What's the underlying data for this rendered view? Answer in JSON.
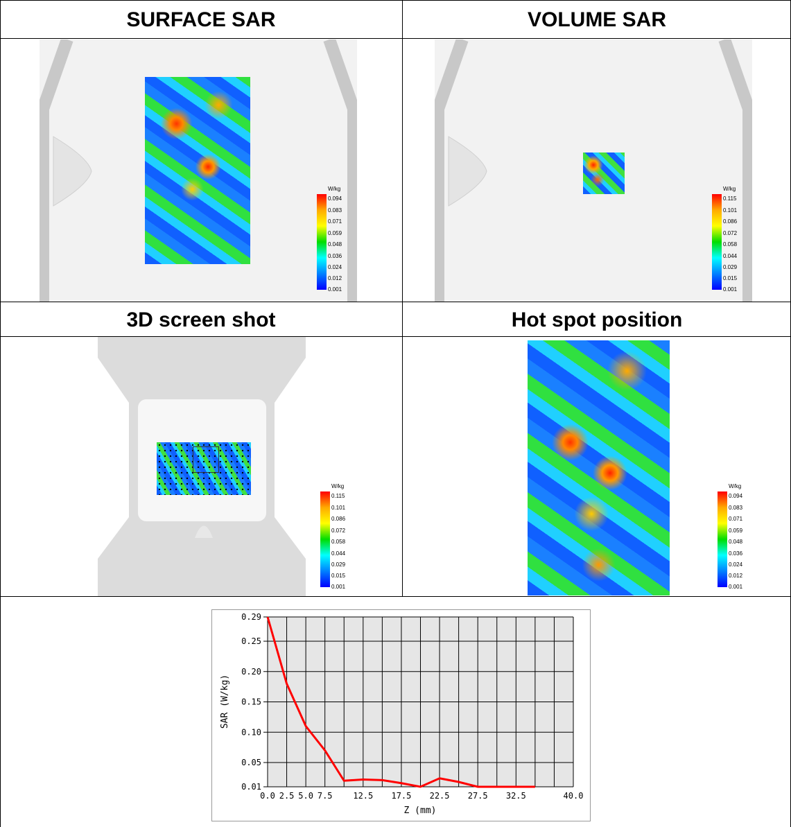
{
  "titles": {
    "surface": "SURFACE SAR",
    "volume": "VOLUME SAR",
    "screenshot3d": "3D screen shot",
    "hotspot": "Hot spot position"
  },
  "colorbars": {
    "surface": {
      "unit": "W/kg",
      "ticks": [
        "0.094",
        "0.083",
        "0.071",
        "0.059",
        "0.048",
        "0.036",
        "0.024",
        "0.012",
        "0.001"
      ]
    },
    "volume": {
      "unit": "W/kg",
      "ticks": [
        "0.115",
        "0.101",
        "0.086",
        "0.072",
        "0.058",
        "0.044",
        "0.029",
        "0.015",
        "0.001"
      ]
    },
    "screenshot3d": {
      "unit": "W/kg",
      "ticks": [
        "0.115",
        "0.101",
        "0.086",
        "0.072",
        "0.058",
        "0.044",
        "0.029",
        "0.015",
        "0.001"
      ]
    },
    "hotspot": {
      "unit": "W/kg",
      "ticks": [
        "0.094",
        "0.083",
        "0.071",
        "0.059",
        "0.048",
        "0.036",
        "0.024",
        "0.012",
        "0.001"
      ]
    }
  },
  "colors": {
    "line": "#ff0000",
    "plot_bg": "#e6e6e6",
    "grid": "#000000"
  },
  "chart_data": {
    "type": "line",
    "title": "",
    "xlabel": "Z (mm)",
    "ylabel": "SAR (W/kg)",
    "xlim": [
      0,
      40
    ],
    "ylim": [
      0.01,
      0.29
    ],
    "x_ticks": [
      "0.0",
      "2.5",
      "5.0",
      "7.5",
      "12.5",
      "17.5",
      "22.5",
      "27.5",
      "32.5",
      "40.0"
    ],
    "y_ticks": [
      "0.29",
      "0.25",
      "0.20",
      "0.15",
      "0.10",
      "0.05",
      "0.01"
    ],
    "grid": true,
    "series": [
      {
        "x": [
          0,
          2.5,
          5,
          7.5,
          10,
          12.5,
          15,
          17.5,
          20,
          22.5,
          25,
          27.5,
          30,
          32.5,
          35
        ],
        "y": [
          0.29,
          0.18,
          0.11,
          0.07,
          0.02,
          0.022,
          0.021,
          0.016,
          0.009,
          0.024,
          0.018,
          0.004,
          0.004,
          0.004,
          0.004
        ]
      }
    ]
  }
}
